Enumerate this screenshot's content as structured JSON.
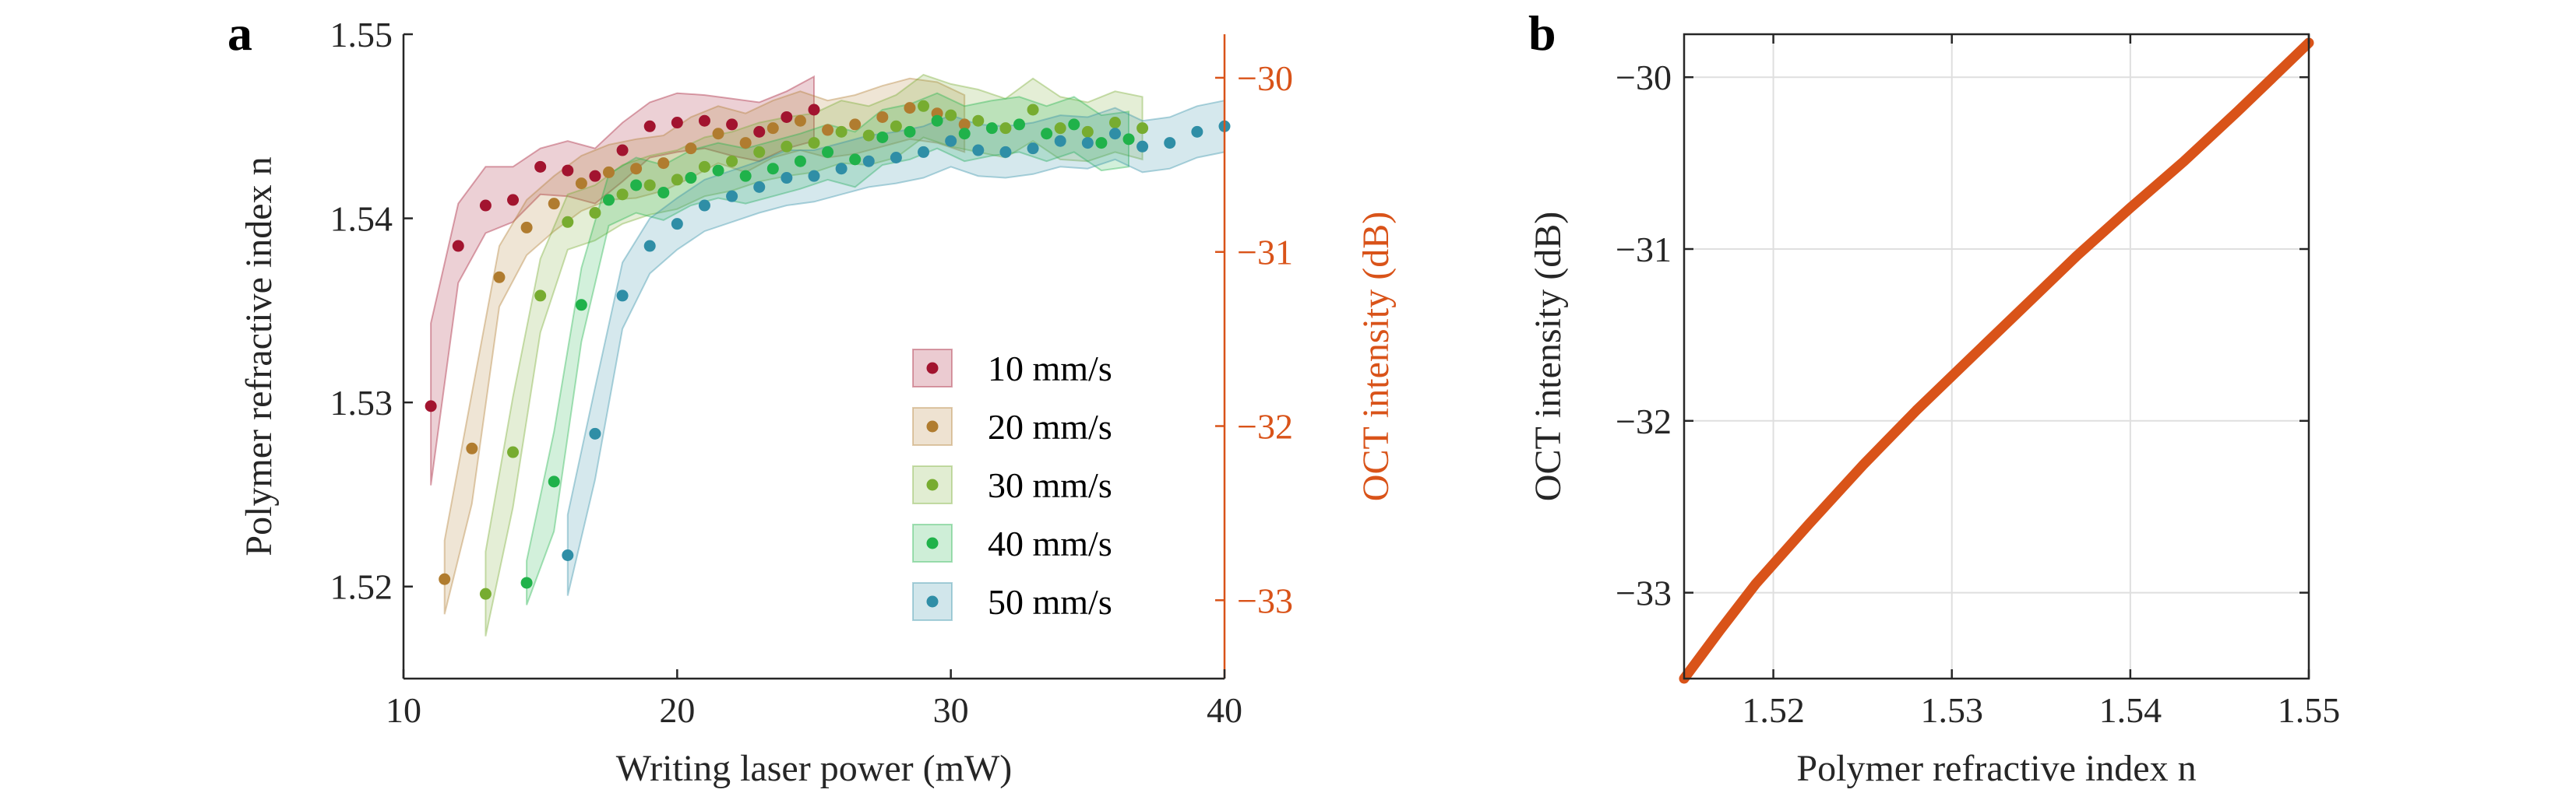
{
  "colors": {
    "axis": "#262626",
    "oct_axis": "#d95319",
    "grid": "#dfdfdf",
    "curve": "#d95319"
  },
  "chart_data": [
    {
      "panel": "a",
      "type": "scatter",
      "xlabel": "Writing laser power (mW)",
      "ylabel": "Polymer refractive index n",
      "y2label": "OCT intensity (dB)",
      "xlim": [
        10,
        40
      ],
      "ylim": [
        1.515,
        1.55
      ],
      "y2lim": [
        -33.45,
        -29.75
      ],
      "xticks": [
        10,
        20,
        30,
        40
      ],
      "yticks": [
        1.52,
        1.53,
        1.54,
        1.55
      ],
      "y2ticks": [
        -33,
        -32,
        -31,
        -30
      ],
      "xtick_labels": [
        "10",
        "20",
        "30",
        "40"
      ],
      "ytick_labels": [
        "1.52",
        "1.53",
        "1.54",
        "1.55"
      ],
      "y2tick_labels": [
        "−33",
        "−32",
        "−31",
        "−30"
      ],
      "grid": false,
      "legend_position": "center-right",
      "series": [
        {
          "name": "10 mm/s",
          "color": "#a2142f",
          "x": [
            11,
            12,
            13,
            14,
            15,
            16,
            17,
            18,
            19,
            20,
            21,
            22,
            23,
            24,
            25
          ],
          "y": [
            1.5298,
            1.5385,
            1.5407,
            1.541,
            1.5428,
            1.5426,
            1.5423,
            1.5437,
            1.545,
            1.5452,
            1.5453,
            1.5451,
            1.5447,
            1.5455,
            1.5459
          ],
          "band_low": [
            1.5255,
            1.5365,
            1.5392,
            1.5398,
            1.5413,
            1.5412,
            1.5408,
            1.542,
            1.5433,
            1.5436,
            1.5438,
            1.5434,
            1.5431,
            1.5438,
            1.5442
          ],
          "band_high": [
            1.5343,
            1.5408,
            1.5428,
            1.5428,
            1.5438,
            1.5442,
            1.5438,
            1.5452,
            1.5463,
            1.5468,
            1.5467,
            1.5465,
            1.5463,
            1.5469,
            1.5477
          ]
        },
        {
          "name": "20 mm/s",
          "color": "#b07c2f",
          "x": [
            11.5,
            12.5,
            13.5,
            14.5,
            15.5,
            16.5,
            17.5,
            18.5,
            19.5,
            20.5,
            21.5,
            22.5,
            23.5,
            24.5,
            25.5,
            26.5,
            27.5,
            28.5,
            29.5,
            30.5
          ],
          "y": [
            1.5204,
            1.5275,
            1.5368,
            1.5395,
            1.5408,
            1.5419,
            1.5425,
            1.5427,
            1.543,
            1.5438,
            1.5446,
            1.5441,
            1.5449,
            1.5453,
            1.5448,
            1.5451,
            1.5455,
            1.546,
            1.5457,
            1.5451
          ],
          "band_low": [
            1.5185,
            1.5245,
            1.5352,
            1.538,
            1.5393,
            1.5404,
            1.541,
            1.5411,
            1.5415,
            1.5422,
            1.543,
            1.5425,
            1.5433,
            1.5437,
            1.5433,
            1.5435,
            1.5439,
            1.5443,
            1.5441,
            1.5436
          ],
          "band_high": [
            1.5225,
            1.5305,
            1.5385,
            1.541,
            1.5423,
            1.5434,
            1.544,
            1.5443,
            1.5445,
            1.5455,
            1.5461,
            1.5457,
            1.5464,
            1.5469,
            1.5464,
            1.5467,
            1.5472,
            1.5476,
            1.5474,
            1.5467
          ]
        },
        {
          "name": "30 mm/s",
          "color": "#77ac30",
          "x": [
            13,
            14,
            15,
            16,
            17,
            18,
            19,
            20,
            21,
            22,
            23,
            24,
            25,
            26,
            27,
            28,
            29,
            30,
            31,
            32,
            33,
            34,
            35,
            36,
            37
          ],
          "y": [
            1.5196,
            1.5273,
            1.5358,
            1.5398,
            1.5403,
            1.5413,
            1.5418,
            1.5421,
            1.5428,
            1.5431,
            1.5436,
            1.5439,
            1.5441,
            1.5447,
            1.5445,
            1.545,
            1.5461,
            1.5456,
            1.5453,
            1.5449,
            1.5459,
            1.5449,
            1.5447,
            1.5452,
            1.5449
          ],
          "band_low": [
            1.5173,
            1.5243,
            1.5338,
            1.5383,
            1.5388,
            1.5397,
            1.5402,
            1.5405,
            1.5412,
            1.5415,
            1.542,
            1.5423,
            1.5425,
            1.543,
            1.5429,
            1.5433,
            1.5444,
            1.5439,
            1.5436,
            1.5433,
            1.5442,
            1.5432,
            1.5431,
            1.5436,
            1.5432
          ],
          "band_high": [
            1.5219,
            1.5303,
            1.5378,
            1.5413,
            1.5418,
            1.5429,
            1.5434,
            1.5437,
            1.5444,
            1.5447,
            1.5452,
            1.5455,
            1.5457,
            1.5464,
            1.5461,
            1.5467,
            1.5478,
            1.5473,
            1.547,
            1.5465,
            1.5476,
            1.5466,
            1.5463,
            1.5469,
            1.5466
          ]
        },
        {
          "name": "40 mm/s",
          "color": "#20b24a",
          "x": [
            14.5,
            15.5,
            16.5,
            17.5,
            18.5,
            19.5,
            20.5,
            21.5,
            22.5,
            23.5,
            24.5,
            25.5,
            26.5,
            27.5,
            28.5,
            29.5,
            30.5,
            31.5,
            32.5,
            33.5,
            34.5,
            35.5,
            36.5
          ],
          "y": [
            1.5202,
            1.5257,
            1.5353,
            1.541,
            1.5418,
            1.5414,
            1.5422,
            1.5426,
            1.5423,
            1.5427,
            1.5431,
            1.5436,
            1.5432,
            1.5444,
            1.5447,
            1.5453,
            1.5446,
            1.5449,
            1.5451,
            1.5446,
            1.5451,
            1.5441,
            1.5443
          ],
          "band_low": [
            1.519,
            1.523,
            1.5333,
            1.5396,
            1.5403,
            1.5399,
            1.5407,
            1.5411,
            1.5408,
            1.5412,
            1.5416,
            1.5421,
            1.5417,
            1.5429,
            1.5432,
            1.5438,
            1.5431,
            1.5434,
            1.5436,
            1.5431,
            1.5436,
            1.5426,
            1.5428
          ],
          "band_high": [
            1.5214,
            1.5284,
            1.5373,
            1.5424,
            1.5433,
            1.5429,
            1.5437,
            1.5441,
            1.5438,
            1.5442,
            1.5446,
            1.5451,
            1.5447,
            1.5459,
            1.5462,
            1.5468,
            1.5461,
            1.5464,
            1.5466,
            1.5461,
            1.5466,
            1.5456,
            1.5458
          ]
        },
        {
          "name": "50 mm/s",
          "color": "#2f8ea6",
          "x": [
            16,
            17,
            18,
            19,
            20,
            21,
            22,
            23,
            24,
            25,
            26,
            27,
            28,
            29,
            30,
            31,
            32,
            33,
            34,
            35,
            36,
            37,
            38,
            39,
            40
          ],
          "y": [
            1.5217,
            1.5283,
            1.5358,
            1.5385,
            1.5397,
            1.5407,
            1.5412,
            1.5417,
            1.5422,
            1.5423,
            1.5427,
            1.5431,
            1.5433,
            1.5436,
            1.5442,
            1.5437,
            1.5436,
            1.5438,
            1.5442,
            1.5441,
            1.5446,
            1.5439,
            1.5441,
            1.5447,
            1.545
          ],
          "band_low": [
            1.5195,
            1.5258,
            1.534,
            1.537,
            1.5383,
            1.5393,
            1.5398,
            1.5403,
            1.5407,
            1.5409,
            1.5413,
            1.5417,
            1.5419,
            1.5422,
            1.5428,
            1.5423,
            1.5422,
            1.5424,
            1.5428,
            1.5427,
            1.5432,
            1.5425,
            1.5427,
            1.5433,
            1.5436
          ],
          "band_high": [
            1.5239,
            1.5308,
            1.5376,
            1.54,
            1.5411,
            1.5421,
            1.5426,
            1.5431,
            1.5437,
            1.5437,
            1.5441,
            1.5445,
            1.5447,
            1.545,
            1.5456,
            1.5451,
            1.545,
            1.5452,
            1.5456,
            1.5455,
            1.546,
            1.5453,
            1.5455,
            1.5461,
            1.5464
          ]
        }
      ]
    },
    {
      "panel": "b",
      "type": "line",
      "xlabel": "Polymer refractive index n",
      "ylabel": "OCT intensity (dB)",
      "xlim": [
        1.515,
        1.55
      ],
      "ylim": [
        -33.5,
        -29.75
      ],
      "xticks": [
        1.52,
        1.53,
        1.54,
        1.55
      ],
      "yticks": [
        -33,
        -32,
        -31,
        -30
      ],
      "xtick_labels": [
        "1.52",
        "1.53",
        "1.54",
        "1.55"
      ],
      "ytick_labels": [
        "−33",
        "−32",
        "−31",
        "−30"
      ],
      "grid": true,
      "series": [
        {
          "color": "#d95319",
          "x": [
            1.515,
            1.517,
            1.519,
            1.522,
            1.525,
            1.528,
            1.531,
            1.534,
            1.537,
            1.54,
            1.543,
            1.546,
            1.548,
            1.55
          ],
          "y": [
            -33.5,
            -33.22,
            -32.95,
            -32.6,
            -32.26,
            -31.94,
            -31.64,
            -31.34,
            -31.04,
            -30.76,
            -30.49,
            -30.2,
            -30.0,
            -29.8
          ]
        }
      ]
    }
  ]
}
